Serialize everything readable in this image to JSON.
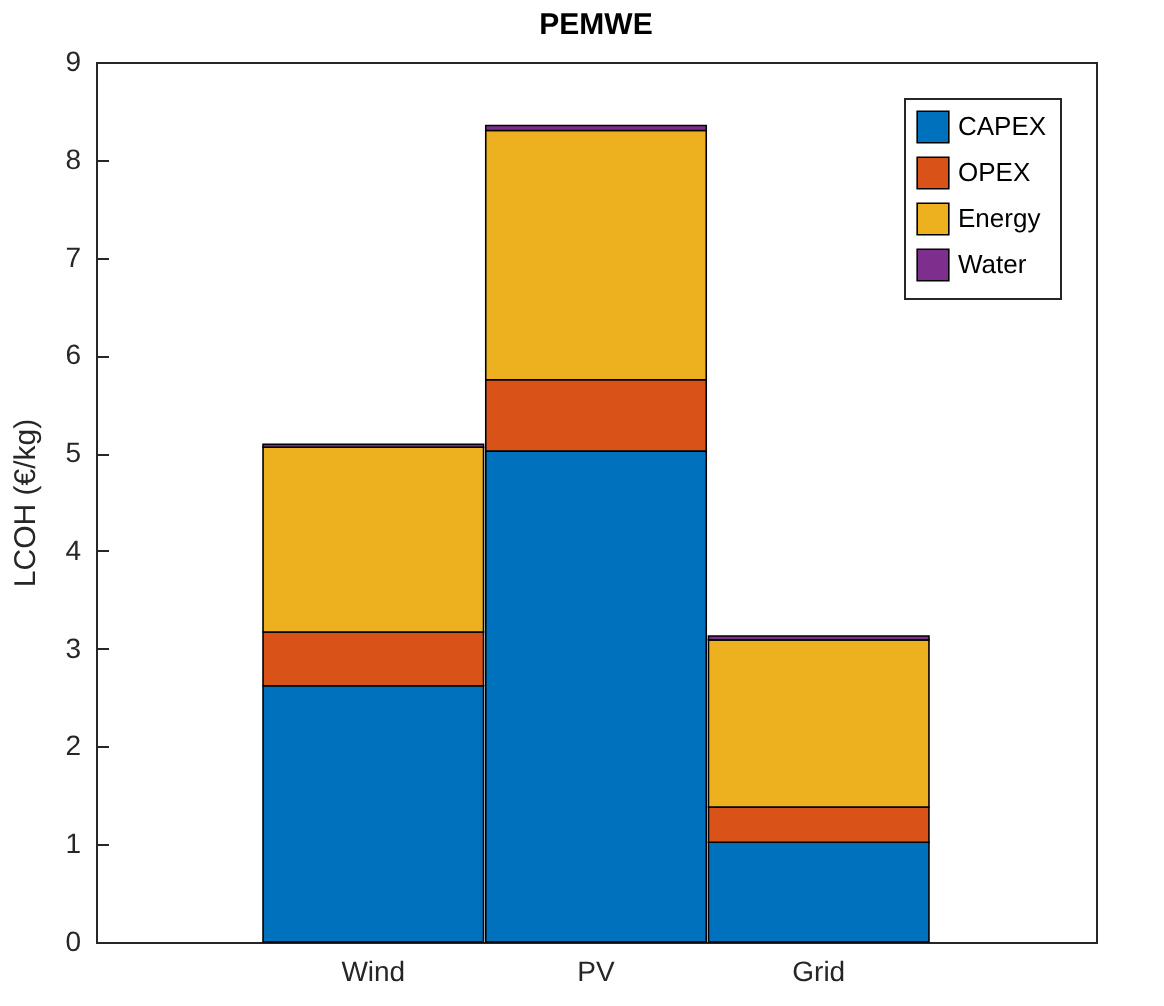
{
  "chart_data": {
    "type": "bar",
    "title": "PEMWE",
    "ylabel": "LCOH (€/kg)",
    "categories": [
      "Wind",
      "PV",
      "Grid"
    ],
    "stacked": true,
    "ylim": [
      0,
      9
    ],
    "yticks": [
      0,
      1,
      2,
      3,
      4,
      5,
      6,
      7,
      8,
      9
    ],
    "grid": false,
    "legend": "top right",
    "series": [
      {
        "name": "CAPEX",
        "color": "#0072bd",
        "values": [
          2.62,
          5.02,
          1.02
        ]
      },
      {
        "name": "OPEX",
        "color": "#d95319",
        "values": [
          0.55,
          0.73,
          0.36
        ]
      },
      {
        "name": "Energy",
        "color": "#edb120",
        "values": [
          1.89,
          2.55,
          1.71
        ]
      },
      {
        "name": "Water",
        "color": "#7e2f8e",
        "values": [
          0.03,
          0.05,
          0.04
        ]
      }
    ]
  }
}
